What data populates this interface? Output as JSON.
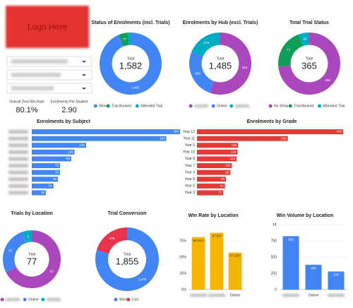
{
  "logo": "Logo Here",
  "kpis": [
    {
      "label": "Overall Deal Win Rate",
      "value": {
        "value": 80.1,
        "label": "80.1%"
      }
    },
    {
      "label": "Enrolments Per Student",
      "value": {
        "value": 2.9,
        "label": "2.90"
      }
    }
  ],
  "chart_data": [
    {
      "type": "donut",
      "title": "Status of Enrolments (incl. Trials)",
      "labels": [
        "Won",
        "Trial Booked",
        "Attended Trial"
      ],
      "values": [
        1482,
        77,
        23
      ],
      "value_labels": [
        "1,482",
        "77",
        null
      ],
      "colors": [
        "#4285f4",
        "#0f9d58",
        "#00acc1"
      ],
      "total_caption": "Total",
      "total": {
        "value": 1582,
        "label": "1,582"
      }
    },
    {
      "type": "donut",
      "title": "Enrolments by Hub (excl. Trials)",
      "labels": [
        null,
        "Online",
        null
      ],
      "values": [
        823,
        383,
        279
      ],
      "colors": [
        "#ab47bc",
        "#4285f4",
        "#00acc1"
      ],
      "total_caption": "Total",
      "total": {
        "value": 1485,
        "label": "1,485"
      }
    },
    {
      "type": "donut",
      "title": "Total Trial Status",
      "labels": [
        "No Show",
        "Trial Booked",
        "Attended Trial"
      ],
      "values": [
        268,
        77,
        20
      ],
      "colors": [
        "#ab47bc",
        "#0f9d58",
        "#00acc1"
      ],
      "total_caption": "Total",
      "total": {
        "value": 365,
        "label": "365"
      }
    },
    {
      "type": "hbar",
      "title": "Enrolments by Subject",
      "categories": [
        null,
        null,
        null,
        null,
        null,
        null,
        null,
        null,
        null,
        null
      ],
      "values": [
        368,
        334,
        135,
        106,
        98,
        70,
        70,
        65,
        54,
        35
      ],
      "color": "#4285f4"
    },
    {
      "type": "hbar",
      "title": "Enrolments by Grade",
      "categories": [
        "Year 12",
        "Year 11",
        "Year 5",
        "Year 10",
        "Year 9",
        "Year 7",
        "Year 4",
        "Year 8",
        "Year 6",
        "Year 3"
      ],
      "values": [
        428,
        266,
        120,
        119,
        116,
        102,
        98,
        85,
        82,
        77
      ],
      "color": "#e53935"
    },
    {
      "type": "donut",
      "title": "Trials by Location",
      "labels": [
        null,
        "Online",
        null
      ],
      "values": [
        52,
        21,
        4
      ],
      "colors": [
        "#ab47bc",
        "#4285f4",
        "#00acc1"
      ],
      "total_caption": "Total",
      "total": {
        "value": 77,
        "label": "77"
      }
    },
    {
      "type": "donut",
      "title": "Trial Conversion",
      "labels": [
        "Won",
        "Lost"
      ],
      "values": [
        1479,
        376
      ],
      "value_labels": [
        "1,479",
        "376"
      ],
      "colors": [
        "#4285f4",
        "#e8334a"
      ],
      "total_caption": "Total",
      "total": {
        "value": 1855,
        "label": "1,855"
      }
    },
    {
      "type": "bar",
      "title": "Win Rate by Location",
      "categories": [
        null,
        null,
        "Online"
      ],
      "values": [
        80.81,
        87.5,
        57.03
      ],
      "value_labels": [
        "80.81%",
        "87.5%",
        "57.03%"
      ],
      "color": "#f4b400",
      "ylim": [
        0,
        100
      ],
      "yticks": [
        {
          "value": 0,
          "label": "0%"
        },
        {
          "value": 25,
          "label": "25%"
        },
        {
          "value": 50,
          "label": "50%"
        },
        {
          "value": 75,
          "label": "75%"
        }
      ],
      "grid": true
    },
    {
      "type": "bar",
      "title": "Win Volume by Location",
      "categories": [
        null,
        "Online",
        null
      ],
      "values": [
        823,
        383,
        279
      ],
      "color": "#4285f4",
      "ylim": [
        0,
        1000
      ],
      "yticks": [
        0,
        250,
        500,
        750,
        {
          "value": 1000,
          "label": "1K"
        }
      ],
      "grid": true
    }
  ]
}
